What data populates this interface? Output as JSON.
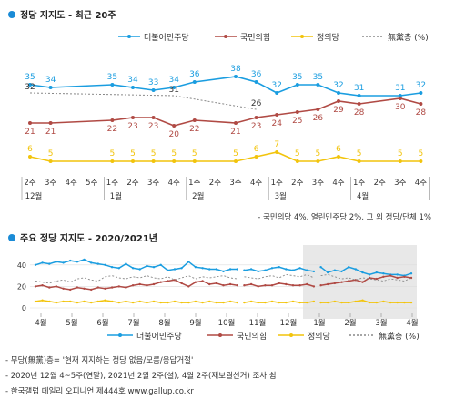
{
  "chart_data": [
    {
      "type": "line",
      "title": "정당 지지도 - 최근 20주",
      "title_color": "#1a8bd6",
      "legend_placement": "top-right",
      "categories": [
        "2주",
        "3주",
        "4주",
        "5주",
        "1주",
        "2주",
        "3주",
        "4주",
        "1주",
        "2주",
        "3주",
        "4주",
        "1주",
        "2주",
        "3주",
        "4주",
        "1주",
        "2주",
        "3주",
        "4주"
      ],
      "month_labels": [
        {
          "label": "12월",
          "index": 0
        },
        {
          "label": "1월",
          "index": 4
        },
        {
          "label": "2월",
          "index": 8
        },
        {
          "label": "3월",
          "index": 12
        },
        {
          "label": "4월",
          "index": 16
        }
      ],
      "ylim": [
        0,
        45
      ],
      "grid": false,
      "series": [
        {
          "name": "더불어민주당",
          "color": "#1a9de0",
          "dashed": false,
          "values": [
            35,
            34,
            null,
            null,
            35,
            34,
            33,
            34,
            36,
            null,
            38,
            36,
            32,
            35,
            35,
            32,
            31,
            null,
            31,
            32
          ]
        },
        {
          "name": "국민의힘",
          "color": "#b04a44",
          "dashed": false,
          "values": [
            21,
            21,
            null,
            null,
            22,
            23,
            23,
            20,
            22,
            null,
            21,
            23,
            24,
            25,
            26,
            29,
            28,
            null,
            30,
            28
          ]
        },
        {
          "name": "정의당",
          "color": "#f2c40c",
          "dashed": false,
          "values": [
            6,
            5,
            null,
            null,
            5,
            5,
            5,
            5,
            5,
            null,
            5,
            6,
            7,
            5,
            5,
            6,
            5,
            null,
            5,
            5
          ]
        },
        {
          "name": "無黨층 (%)",
          "color": "#888888",
          "dashed": true,
          "values": [
            32,
            null,
            null,
            null,
            null,
            null,
            null,
            31,
            null,
            null,
            null,
            26,
            null,
            null,
            null,
            null,
            null,
            null,
            null,
            null
          ]
        }
      ],
      "footnote": "- 국민의당 4%, 열린민주당 2%, 그 외 정당/단체 1%"
    },
    {
      "type": "line",
      "title": "주요 정당 지지도 - 2020/2021년",
      "title_color": "#1a8bd6",
      "legend_placement": "bottom",
      "months": [
        "4월",
        "5월",
        "6월",
        "7월",
        "8월",
        "9월",
        "10월",
        "11월",
        "12월",
        "1월",
        "2월",
        "3월",
        "4월"
      ],
      "y_ticks": [
        0,
        20,
        40
      ],
      "ylim": [
        0,
        50
      ],
      "shaded_period": [
        "1월",
        "4월"
      ],
      "series": [
        {
          "name": "더불어민주당",
          "color": "#1a9de0",
          "dashed": false,
          "values": [
            40,
            42,
            41,
            43,
            42,
            44,
            43,
            45,
            42,
            41,
            40,
            38,
            37,
            41,
            37,
            36,
            39,
            38,
            40,
            35,
            36,
            37,
            43,
            38,
            37,
            36,
            36,
            34,
            36,
            36,
            35,
            36,
            34,
            35,
            37,
            38,
            36,
            35,
            37,
            35,
            34,
            38,
            33,
            35,
            34,
            38,
            36,
            33,
            31,
            33,
            32,
            31,
            31,
            30,
            32
          ]
        },
        {
          "name": "국민의힘",
          "color": "#b04a44",
          "dashed": false,
          "values": [
            20,
            21,
            19,
            20,
            18,
            17,
            19,
            18,
            17,
            19,
            18,
            19,
            20,
            19,
            21,
            22,
            21,
            22,
            24,
            25,
            26,
            23,
            20,
            24,
            25,
            22,
            23,
            21,
            22,
            21,
            21,
            22,
            20,
            21,
            21,
            23,
            22,
            21,
            21,
            22,
            20,
            21,
            22,
            23,
            24,
            25,
            26,
            24,
            28,
            27,
            29,
            30,
            28,
            29,
            28
          ]
        },
        {
          "name": "정의당",
          "color": "#f2c40c",
          "dashed": false,
          "values": [
            6,
            7,
            6,
            5,
            6,
            6,
            5,
            6,
            5,
            6,
            7,
            6,
            5,
            6,
            5,
            6,
            5,
            6,
            5,
            5,
            6,
            5,
            5,
            6,
            5,
            6,
            5,
            5,
            6,
            5,
            5,
            6,
            5,
            5,
            6,
            5,
            5,
            6,
            5,
            5,
            6,
            5,
            5,
            6,
            5,
            5,
            6,
            7,
            5,
            5,
            6,
            5,
            5,
            5,
            5
          ]
        },
        {
          "name": "無黨층 (%)",
          "color": "#888888",
          "dashed": true,
          "values": [
            25,
            24,
            23,
            25,
            26,
            24,
            27,
            28,
            26,
            25,
            29,
            30,
            28,
            27,
            29,
            28,
            30,
            28,
            27,
            29,
            26,
            28,
            30,
            27,
            29,
            28,
            29,
            30,
            28,
            27,
            29,
            28,
            27,
            29,
            30,
            28,
            31,
            30,
            29,
            31,
            28,
            30,
            31,
            29,
            27,
            28,
            26,
            28,
            27,
            26,
            25,
            27,
            26,
            25,
            28
          ]
        }
      ]
    }
  ],
  "notes": [
    "- 무당(無黨)층= '현재 지지하는 정당 없음/모름/응답거절'",
    "- 2020년 12월 4~5주(연말), 2021년 2월 2주(설), 4월 2주(재보궐선거) 조사 쉼",
    "- 한국갤럽 데일리 오피니언 제444호 www.gallup.co.kr"
  ]
}
